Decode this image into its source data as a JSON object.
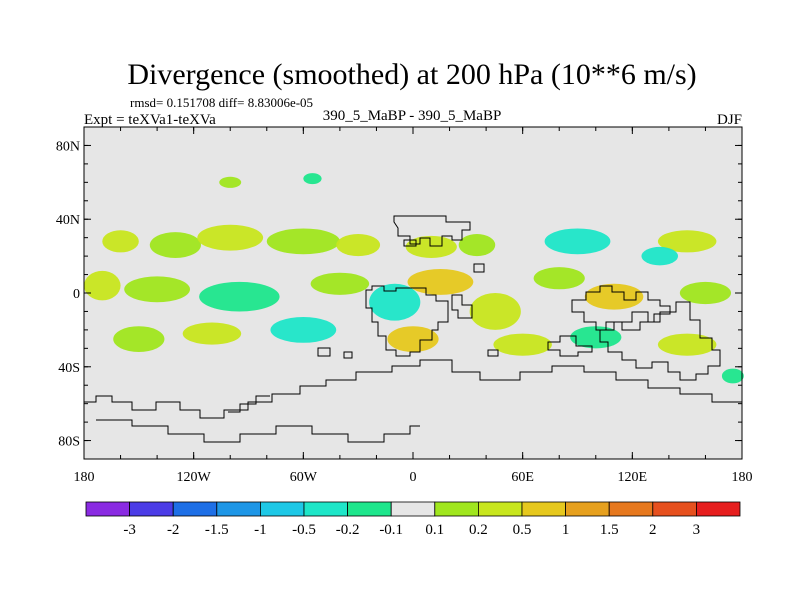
{
  "chart_data": {
    "type": "heatmap",
    "title": "Divergence (smoothed) at 200 hPa (10**6 m/s)",
    "stats": "rmsd= 0.151708 diff= 8.83006e-05",
    "left_label": "Expt = teXVa1-teXVa",
    "center_label": "390_5_MaBP - 390_5_MaBP",
    "right_label": "DJF",
    "xlim": [
      -180,
      180
    ],
    "ylim": [
      -90,
      90
    ],
    "x_ticks": [
      {
        "value": -180,
        "label": "180"
      },
      {
        "value": -120,
        "label": "120W"
      },
      {
        "value": -60,
        "label": "60W"
      },
      {
        "value": 0,
        "label": "0"
      },
      {
        "value": 60,
        "label": "60E"
      },
      {
        "value": 120,
        "label": "120E"
      },
      {
        "value": 180,
        "label": "180"
      }
    ],
    "y_ticks": [
      {
        "value": 80,
        "label": "80N"
      },
      {
        "value": 40,
        "label": "40N"
      },
      {
        "value": 0,
        "label": "0"
      },
      {
        "value": -40,
        "label": "40S"
      },
      {
        "value": -80,
        "label": "80S"
      }
    ],
    "colorbar": {
      "colors": [
        "#8a2be2",
        "#4b3ce6",
        "#1e6fe6",
        "#1e96e6",
        "#1ec8e6",
        "#1ee6c8",
        "#1ee68c",
        "#e6e6e6",
        "#a0e61e",
        "#c8e61e",
        "#e6c81e",
        "#e6a01e",
        "#e6781e",
        "#e6501e",
        "#e61e1e"
      ],
      "labels": [
        "-3",
        "-2",
        "-1.5",
        "-1",
        "-0.5",
        "-0.2",
        "-0.1",
        "0.1",
        "0.2",
        "0.5",
        "1",
        "1.5",
        "2",
        "3"
      ]
    },
    "field_blobs": [
      {
        "lon": -160,
        "lat": 28,
        "rlon": 10,
        "rlat": 6,
        "level": 9
      },
      {
        "lon": -130,
        "lat": 26,
        "rlon": 14,
        "rlat": 7,
        "level": 8
      },
      {
        "lon": -100,
        "lat": 30,
        "rlon": 18,
        "rlat": 7,
        "level": 9
      },
      {
        "lon": -60,
        "lat": 28,
        "rlon": 20,
        "rlat": 7,
        "level": 8
      },
      {
        "lon": -30,
        "lat": 26,
        "rlon": 12,
        "rlat": 6,
        "level": 9
      },
      {
        "lon": 10,
        "lat": 25,
        "rlon": 14,
        "rlat": 6,
        "level": 9
      },
      {
        "lon": 35,
        "lat": 26,
        "rlon": 10,
        "rlat": 6,
        "level": 8
      },
      {
        "lon": 90,
        "lat": 28,
        "rlon": 18,
        "rlat": 7,
        "level": 5
      },
      {
        "lon": 150,
        "lat": 28,
        "rlon": 16,
        "rlat": 6,
        "level": 9
      },
      {
        "lon": 135,
        "lat": 20,
        "rlon": 10,
        "rlat": 5,
        "level": 5
      },
      {
        "lon": -170,
        "lat": 4,
        "rlon": 10,
        "rlat": 8,
        "level": 9
      },
      {
        "lon": -140,
        "lat": 2,
        "rlon": 18,
        "rlat": 7,
        "level": 8
      },
      {
        "lon": -95,
        "lat": -2,
        "rlon": 22,
        "rlat": 8,
        "level": 6
      },
      {
        "lon": -40,
        "lat": 5,
        "rlon": 16,
        "rlat": 6,
        "level": 8
      },
      {
        "lon": -10,
        "lat": -5,
        "rlon": 14,
        "rlat": 10,
        "level": 5
      },
      {
        "lon": 15,
        "lat": 6,
        "rlon": 18,
        "rlat": 7,
        "level": 10
      },
      {
        "lon": 45,
        "lat": -10,
        "rlon": 14,
        "rlat": 10,
        "level": 9
      },
      {
        "lon": 80,
        "lat": 8,
        "rlon": 14,
        "rlat": 6,
        "level": 8
      },
      {
        "lon": 110,
        "lat": -2,
        "rlon": 16,
        "rlat": 7,
        "level": 10
      },
      {
        "lon": 160,
        "lat": 0,
        "rlon": 14,
        "rlat": 6,
        "level": 8
      },
      {
        "lon": -150,
        "lat": -25,
        "rlon": 14,
        "rlat": 7,
        "level": 8
      },
      {
        "lon": -110,
        "lat": -22,
        "rlon": 16,
        "rlat": 6,
        "level": 9
      },
      {
        "lon": -60,
        "lat": -20,
        "rlon": 18,
        "rlat": 7,
        "level": 5
      },
      {
        "lon": 0,
        "lat": -25,
        "rlon": 14,
        "rlat": 7,
        "level": 10
      },
      {
        "lon": 60,
        "lat": -28,
        "rlon": 16,
        "rlat": 6,
        "level": 9
      },
      {
        "lon": 100,
        "lat": -24,
        "rlon": 14,
        "rlat": 6,
        "level": 6
      },
      {
        "lon": 150,
        "lat": -28,
        "rlon": 16,
        "rlat": 6,
        "level": 9
      },
      {
        "lon": 175,
        "lat": -45,
        "rlon": 6,
        "rlat": 4,
        "level": 6
      },
      {
        "lon": -100,
        "lat": 60,
        "rlon": 6,
        "rlat": 3,
        "level": 8
      },
      {
        "lon": -55,
        "lat": 62,
        "rlon": 5,
        "rlat": 3,
        "level": 6
      }
    ]
  }
}
